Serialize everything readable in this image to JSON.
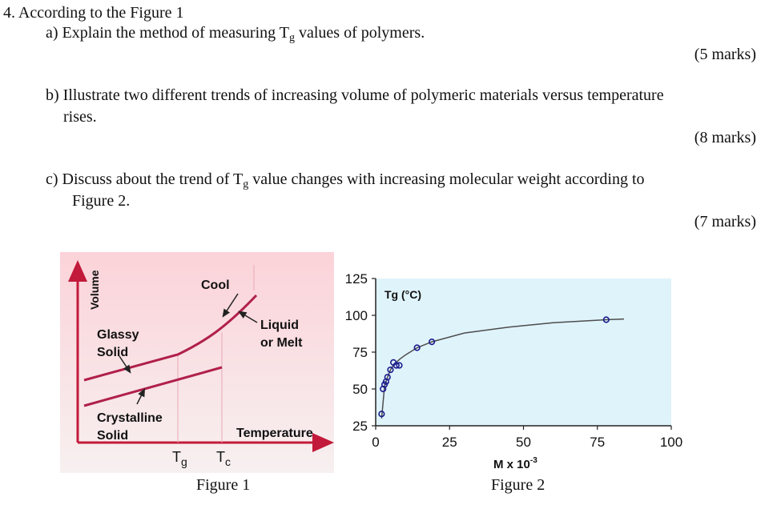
{
  "question": {
    "heading": "4. According to the Figure 1",
    "a": {
      "pre": "a) Explain the method of measuring T",
      "sub": "g",
      "post": " values of polymers.",
      "marks": "(5 marks)"
    },
    "b": {
      "line1": "b) Illustrate two different trends of increasing volume of polymeric materials versus  temperature",
      "line2": "rises.",
      "marks": "(8 marks)"
    },
    "c": {
      "pre": "c) Discuss about the trend of T",
      "sub": "g",
      "post": " value changes with increasing molecular weight according to",
      "line2": "Figure 2.",
      "marks": "(7 marks)"
    }
  },
  "figure1": {
    "caption": "Figure 1",
    "labels": {
      "volume": "Volume",
      "cool": "Cool",
      "glassy1": "Glassy",
      "glassy2": "Solid",
      "liquid1": "Liquid",
      "liquid2": "or Melt",
      "cryst1": "Crystalline",
      "cryst2": "Solid",
      "temperature": "Temperature",
      "tg_main": "T",
      "tg_sub": "g",
      "tc_main": "T",
      "tc_sub": "c"
    },
    "colors": {
      "background_top": "#fbd3d9",
      "background_bottom": "#f7f0f0",
      "curve": "#b0204a",
      "axis": "#c21a3a"
    }
  },
  "figure2": {
    "caption": "Figure 2",
    "chart_data": {
      "type": "scatter",
      "ylabel_inside": "Tg (°C)",
      "xlabel": "M x 10",
      "xlabel_sup": "-3",
      "xlim": [
        0,
        100
      ],
      "ylim": [
        25,
        125
      ],
      "xticks": [
        "0",
        "25",
        "50",
        "75",
        "100"
      ],
      "yticks": [
        "25",
        "50",
        "75",
        "100",
        "125"
      ],
      "x": [
        2,
        2.5,
        3,
        3.5,
        4,
        5,
        6,
        7,
        8,
        14,
        19,
        78
      ],
      "y": [
        33,
        50,
        53,
        55,
        58,
        63,
        68,
        66,
        66,
        78,
        82,
        97
      ],
      "curve_x": [
        2,
        3,
        4,
        5,
        6,
        8,
        10,
        14,
        19,
        30,
        45,
        60,
        78,
        84
      ],
      "curve_y": [
        30,
        52,
        58,
        63,
        66,
        70,
        73,
        78,
        82,
        88,
        92,
        95,
        97,
        97.5
      ]
    },
    "colors": {
      "background": "#dff3fb",
      "axis": "#222222",
      "marker": "#1a1a8c",
      "curve": "#4d4d4d"
    }
  }
}
